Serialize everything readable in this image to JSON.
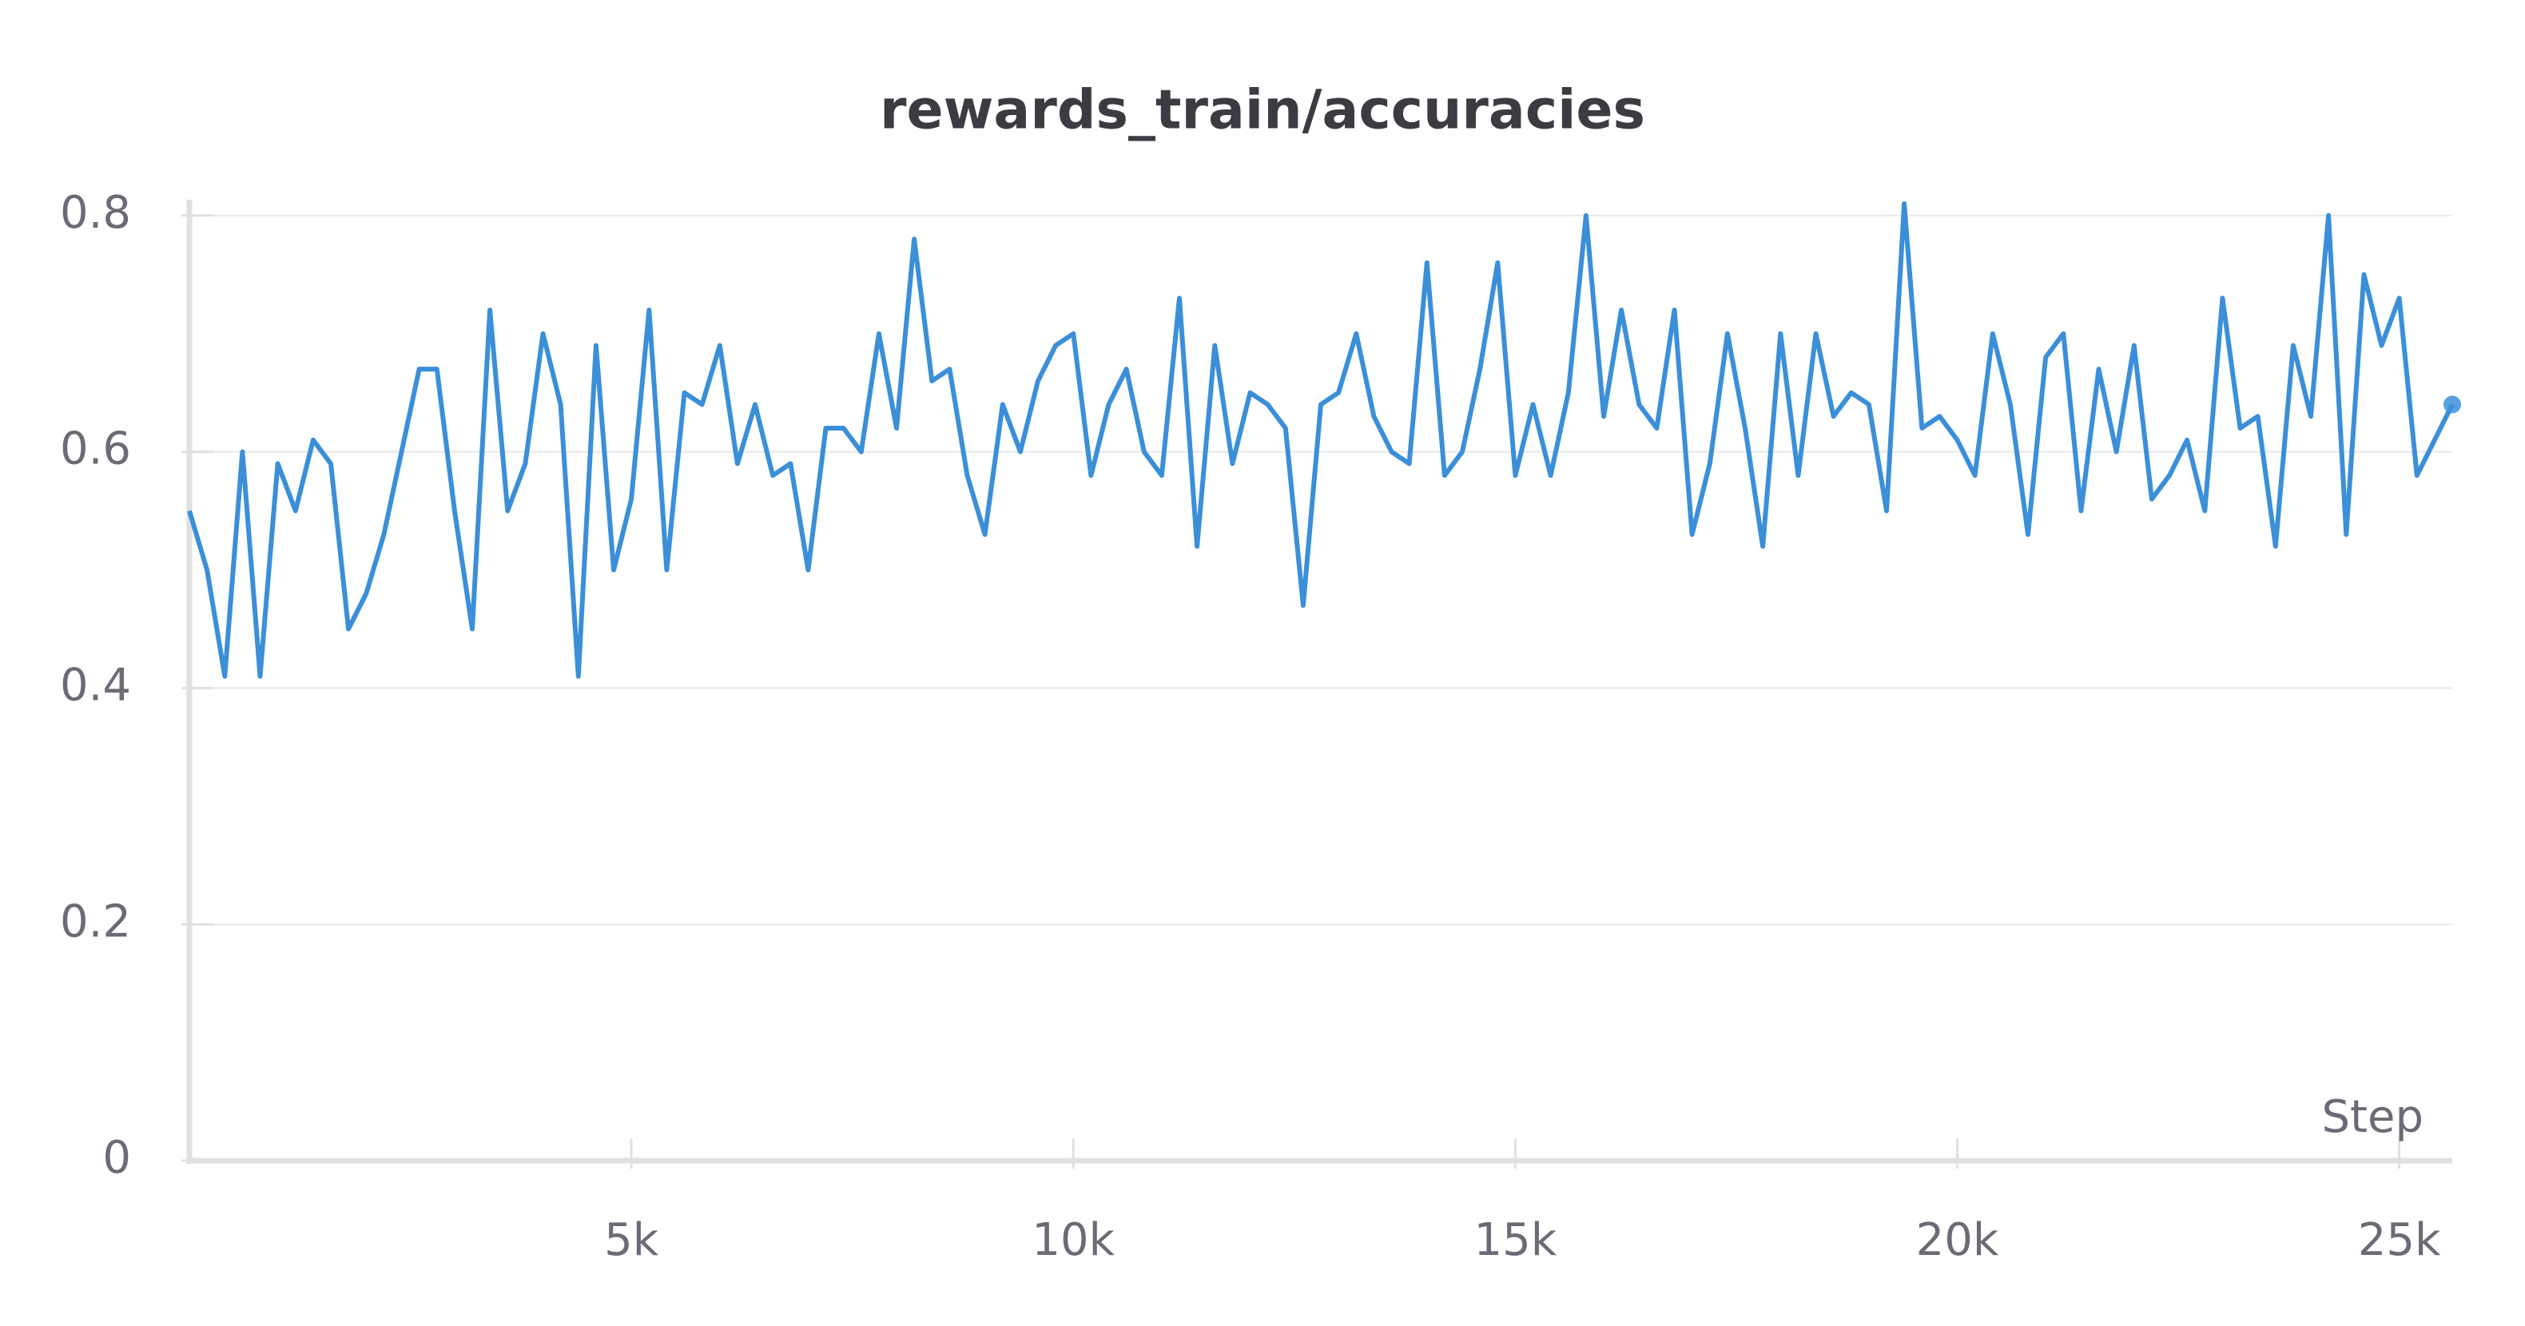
{
  "chart_data": {
    "type": "line",
    "title": "rewards_train/accuracies",
    "xlabel": "Step",
    "x": [
      0,
      200,
      400,
      600,
      800,
      1000,
      1200,
      1400,
      1600,
      1800,
      2000,
      2200,
      2400,
      2600,
      2800,
      3000,
      3200,
      3400,
      3600,
      3800,
      4000,
      4200,
      4400,
      4600,
      4800,
      5000,
      5200,
      5400,
      5600,
      5800,
      6000,
      6200,
      6400,
      6600,
      6800,
      7000,
      7200,
      7400,
      7600,
      7800,
      8000,
      8200,
      8400,
      8600,
      8800,
      9000,
      9200,
      9400,
      9600,
      9800,
      10000,
      10200,
      10400,
      10600,
      10800,
      11000,
      11200,
      11400,
      11600,
      11800,
      12000,
      12200,
      12400,
      12600,
      12800,
      13000,
      13200,
      13400,
      13600,
      13800,
      14000,
      14200,
      14400,
      14600,
      14800,
      15000,
      15200,
      15400,
      15600,
      15800,
      16000,
      16200,
      16400,
      16600,
      16800,
      17000,
      17200,
      17400,
      17600,
      17800,
      18000,
      18200,
      18400,
      18600,
      18800,
      19000,
      19200,
      19400,
      19600,
      19800,
      20000,
      20200,
      20400,
      20600,
      20800,
      21000,
      21200,
      21400,
      21600,
      21800,
      22000,
      22200,
      22400,
      22600,
      22800,
      23000,
      23200,
      23400,
      23600,
      23800,
      24000,
      24200,
      24400,
      24600,
      24800,
      25000,
      25200,
      25400,
      25600
    ],
    "series": [
      {
        "name": "rewards_train/accuracies",
        "color": "#3b8fd9",
        "values": [
          0.55,
          0.5,
          0.41,
          0.6,
          0.41,
          0.59,
          0.55,
          0.61,
          0.59,
          0.45,
          0.48,
          0.53,
          0.6,
          0.67,
          0.67,
          0.55,
          0.45,
          0.72,
          0.55,
          0.59,
          0.7,
          0.64,
          0.41,
          0.69,
          0.5,
          0.56,
          0.72,
          0.5,
          0.65,
          0.64,
          0.69,
          0.59,
          0.64,
          0.58,
          0.59,
          0.5,
          0.62,
          0.62,
          0.6,
          0.7,
          0.62,
          0.78,
          0.66,
          0.67,
          0.58,
          0.53,
          0.64,
          0.6,
          0.66,
          0.69,
          0.7,
          0.58,
          0.64,
          0.67,
          0.6,
          0.58,
          0.73,
          0.52,
          0.69,
          0.59,
          0.65,
          0.64,
          0.62,
          0.47,
          0.64,
          0.65,
          0.7,
          0.63,
          0.6,
          0.59,
          0.76,
          0.58,
          0.6,
          0.67,
          0.76,
          0.58,
          0.64,
          0.58,
          0.65,
          0.8,
          0.63,
          0.72,
          0.64,
          0.62,
          0.72,
          0.53,
          0.59,
          0.7,
          0.62,
          0.52,
          0.7,
          0.58,
          0.7,
          0.63,
          0.65,
          0.64,
          0.55,
          0.81,
          0.62,
          0.63,
          0.61,
          0.58,
          0.7,
          0.64,
          0.53,
          0.68,
          0.7,
          0.55,
          0.67,
          0.6,
          0.69,
          0.56,
          0.58,
          0.61,
          0.55,
          0.73,
          0.62,
          0.63,
          0.52,
          0.69,
          0.63,
          0.8,
          0.53,
          0.75,
          0.69,
          0.73,
          0.58,
          0.61,
          0.64
        ]
      }
    ],
    "xlim": [
      0,
      25600
    ],
    "xticks": [
      {
        "value": 5000,
        "label": "5k"
      },
      {
        "value": 10000,
        "label": "10k"
      },
      {
        "value": 15000,
        "label": "15k"
      },
      {
        "value": 20000,
        "label": "20k"
      },
      {
        "value": 25000,
        "label": "25k"
      }
    ],
    "ylim": [
      0,
      0.81
    ],
    "yticks": [
      0,
      0.2,
      0.4,
      0.6,
      0.8
    ],
    "grid": true
  }
}
